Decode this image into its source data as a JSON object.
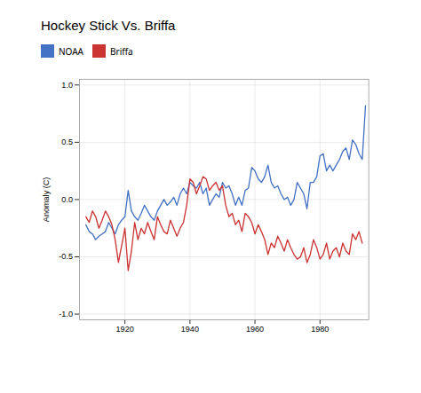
{
  "chart_data": {
    "type": "line",
    "title": "Hockey Stick Vs. Briffa",
    "ylabel": "Anomaly (C)",
    "xlim": [
      1906,
      1995
    ],
    "ylim": [
      -1.05,
      1.05
    ],
    "xticks": [
      1920,
      1940,
      1960,
      1980
    ],
    "yticks": [
      {
        "value": -1.0,
        "label": "-1.0"
      },
      {
        "value": -0.5,
        "label": "-0.5"
      },
      {
        "value": 0.0,
        "label": "0.0"
      },
      {
        "value": 0.5,
        "label": "0.5"
      },
      {
        "value": 1.0,
        "label": "1.0"
      }
    ],
    "grid": true,
    "legend": "top",
    "series": [
      {
        "name": "NOAA",
        "color": "#4472C4",
        "x": [
          1908,
          1909,
          1910,
          1911,
          1912,
          1913,
          1914,
          1915,
          1916,
          1917,
          1918,
          1919,
          1920,
          1921,
          1922,
          1923,
          1924,
          1925,
          1926,
          1927,
          1928,
          1929,
          1930,
          1931,
          1932,
          1933,
          1934,
          1935,
          1936,
          1937,
          1938,
          1939,
          1940,
          1941,
          1942,
          1943,
          1944,
          1945,
          1946,
          1947,
          1948,
          1949,
          1950,
          1951,
          1952,
          1953,
          1954,
          1955,
          1956,
          1957,
          1958,
          1959,
          1960,
          1961,
          1962,
          1963,
          1964,
          1965,
          1966,
          1967,
          1968,
          1969,
          1970,
          1971,
          1972,
          1973,
          1974,
          1975,
          1976,
          1977,
          1978,
          1979,
          1980,
          1981,
          1982,
          1983,
          1984,
          1985,
          1986,
          1987,
          1988,
          1989,
          1990,
          1991,
          1992,
          1993,
          1994
        ],
        "values": [
          -0.22,
          -0.28,
          -0.3,
          -0.35,
          -0.32,
          -0.3,
          -0.28,
          -0.2,
          -0.25,
          -0.3,
          -0.22,
          -0.18,
          -0.15,
          0.08,
          -0.1,
          -0.15,
          -0.18,
          -0.12,
          -0.05,
          -0.1,
          -0.15,
          -0.18,
          -0.1,
          -0.05,
          0.0,
          -0.05,
          -0.02,
          0.02,
          -0.05,
          0.05,
          0.1,
          0.05,
          0.15,
          0.12,
          0.1,
          0.15,
          0.05,
          0.1,
          -0.05,
          0.0,
          0.05,
          0.02,
          0.15,
          0.1,
          0.12,
          0.05,
          -0.05,
          0.02,
          -0.05,
          0.08,
          0.1,
          0.28,
          0.25,
          0.18,
          0.15,
          0.2,
          0.3,
          0.15,
          0.1,
          0.12,
          0.05,
          0.0,
          0.02,
          -0.05,
          0.0,
          0.15,
          0.1,
          0.05,
          -0.08,
          0.15,
          0.15,
          0.2,
          0.38,
          0.4,
          0.25,
          0.3,
          0.25,
          0.3,
          0.35,
          0.42,
          0.45,
          0.35,
          0.52,
          0.48,
          0.4,
          0.35,
          0.82
        ]
      },
      {
        "name": "Briffa",
        "color": "#CC3333",
        "x": [
          1908,
          1909,
          1910,
          1911,
          1912,
          1913,
          1914,
          1915,
          1916,
          1917,
          1918,
          1919,
          1920,
          1921,
          1922,
          1923,
          1924,
          1925,
          1926,
          1927,
          1928,
          1929,
          1930,
          1931,
          1932,
          1933,
          1934,
          1935,
          1936,
          1937,
          1938,
          1939,
          1940,
          1941,
          1942,
          1943,
          1944,
          1945,
          1946,
          1947,
          1948,
          1949,
          1950,
          1951,
          1952,
          1953,
          1954,
          1955,
          1956,
          1957,
          1958,
          1959,
          1960,
          1961,
          1962,
          1963,
          1964,
          1965,
          1966,
          1967,
          1968,
          1969,
          1970,
          1971,
          1972,
          1973,
          1974,
          1975,
          1976,
          1977,
          1978,
          1979,
          1980,
          1981,
          1982,
          1983,
          1984,
          1985,
          1986,
          1987,
          1988,
          1989,
          1990,
          1991,
          1992,
          1993
        ],
        "values": [
          -0.15,
          -0.2,
          -0.1,
          -0.15,
          -0.25,
          -0.18,
          -0.1,
          -0.15,
          -0.22,
          -0.35,
          -0.55,
          -0.4,
          -0.25,
          -0.62,
          -0.45,
          -0.2,
          -0.35,
          -0.25,
          -0.3,
          -0.2,
          -0.28,
          -0.35,
          -0.15,
          -0.22,
          -0.28,
          -0.3,
          -0.18,
          -0.25,
          -0.32,
          -0.25,
          -0.2,
          -0.05,
          0.18,
          0.15,
          0.05,
          0.12,
          0.2,
          0.18,
          0.08,
          0.12,
          0.15,
          0.08,
          0.12,
          -0.05,
          -0.15,
          -0.12,
          -0.22,
          -0.18,
          -0.28,
          -0.12,
          -0.15,
          -0.2,
          -0.3,
          -0.22,
          -0.28,
          -0.35,
          -0.48,
          -0.38,
          -0.42,
          -0.32,
          -0.38,
          -0.45,
          -0.35,
          -0.42,
          -0.48,
          -0.52,
          -0.5,
          -0.42,
          -0.55,
          -0.48,
          -0.35,
          -0.42,
          -0.52,
          -0.48,
          -0.38,
          -0.52,
          -0.45,
          -0.42,
          -0.5,
          -0.38,
          -0.45,
          -0.48,
          -0.3,
          -0.35,
          -0.28,
          -0.38
        ]
      }
    ]
  }
}
